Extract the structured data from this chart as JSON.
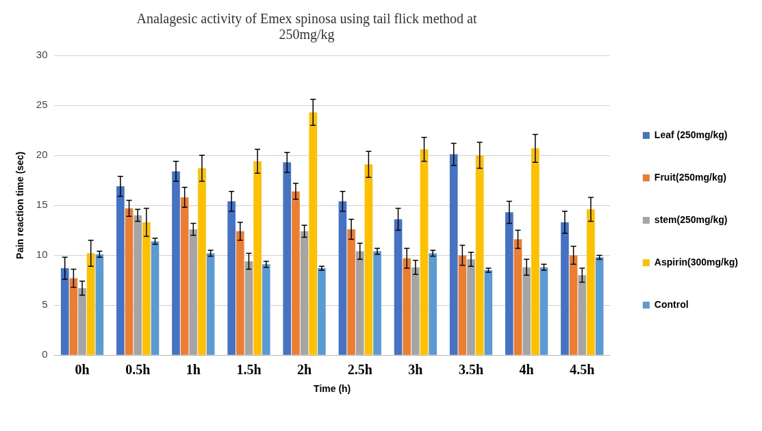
{
  "chart_data": {
    "type": "bar",
    "title": "Analagesic activity of Emex spinosa using tail flick method at 250mg/kg",
    "xlabel": "Time (h)",
    "ylabel": "Pain reaction time (sec)",
    "categories": [
      "0h",
      "0.5h",
      "1h",
      "1.5h",
      "2h",
      "2.5h",
      "3h",
      "3.5h",
      "4h",
      "4.5h"
    ],
    "series": [
      {
        "name": "Leaf (250mg/kg)",
        "color": "#4472c4",
        "values": [
          8.7,
          16.9,
          18.4,
          15.4,
          19.3,
          15.4,
          13.6,
          20.1,
          14.3,
          13.3
        ],
        "errors": [
          1.1,
          1.0,
          1.0,
          1.0,
          1.0,
          1.0,
          1.1,
          1.1,
          1.1,
          1.1
        ]
      },
      {
        "name": "Fruit(250mg/kg)",
        "color": "#ed7d31",
        "values": [
          7.7,
          14.7,
          15.8,
          12.4,
          16.4,
          12.6,
          9.7,
          10.0,
          11.6,
          10.0
        ],
        "errors": [
          0.9,
          0.8,
          1.0,
          0.9,
          0.8,
          1.0,
          1.0,
          1.0,
          0.9,
          0.9
        ]
      },
      {
        "name": "stem(250mg/kg)",
        "color": "#a5a5a5",
        "values": [
          6.7,
          14.0,
          12.6,
          9.4,
          12.4,
          10.4,
          8.8,
          9.6,
          8.8,
          8.0
        ],
        "errors": [
          0.7,
          0.6,
          0.6,
          0.8,
          0.6,
          0.8,
          0.7,
          0.7,
          0.8,
          0.7
        ]
      },
      {
        "name": "Aspirin(300mg/kg)",
        "color": "#ffc000",
        "values": [
          10.2,
          13.3,
          18.7,
          19.4,
          24.3,
          19.1,
          20.6,
          20.0,
          20.7,
          14.6
        ],
        "errors": [
          1.3,
          1.4,
          1.3,
          1.2,
          1.3,
          1.3,
          1.2,
          1.3,
          1.4,
          1.2
        ]
      },
      {
        "name": "Control",
        "color": "#5b9bd5",
        "values": [
          10.1,
          11.4,
          10.2,
          9.1,
          8.7,
          10.4,
          10.2,
          8.5,
          8.8,
          9.8
        ],
        "errors": [
          0.3,
          0.3,
          0.3,
          0.3,
          0.2,
          0.3,
          0.3,
          0.2,
          0.3,
          0.2
        ]
      }
    ],
    "ylim": [
      0,
      30
    ],
    "yticks": [
      0,
      5,
      10,
      15,
      20,
      25,
      30
    ],
    "grid": "y",
    "legend": "right"
  }
}
